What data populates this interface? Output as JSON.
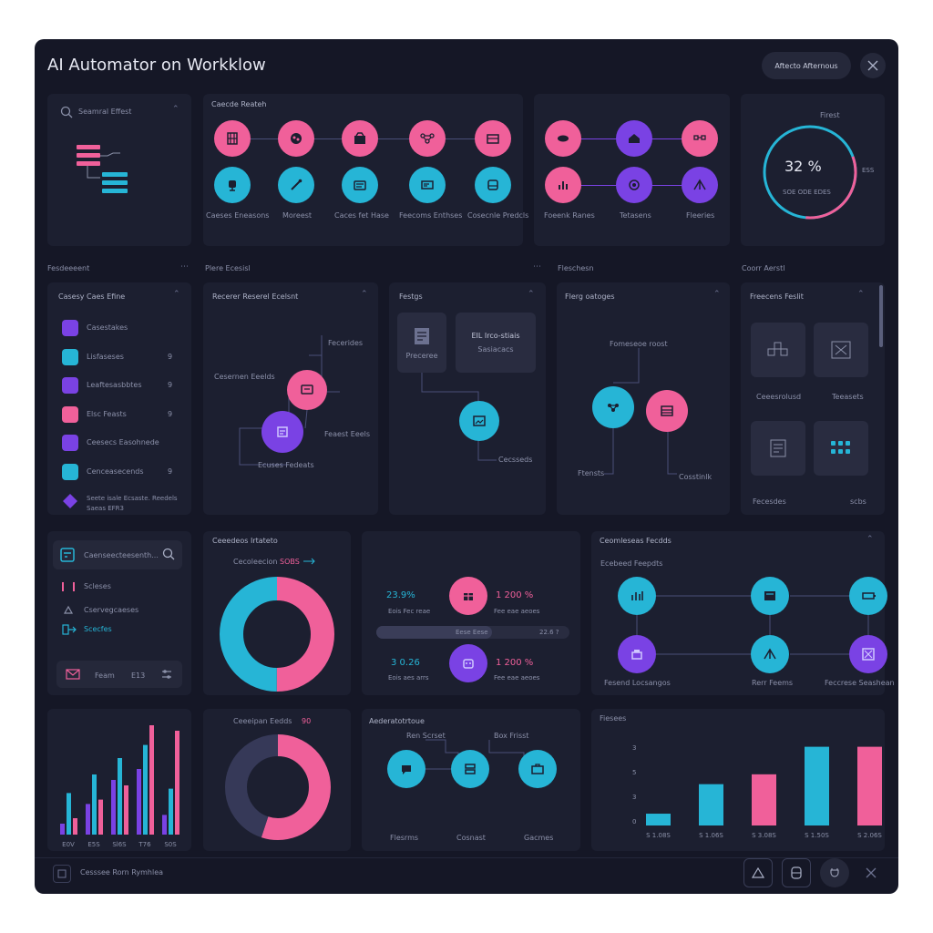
{
  "window": {
    "title": "AI Automator on Workklow",
    "action_button": "Aftecto Afternous"
  },
  "top": {
    "search_placeholder": "Seamral Effest",
    "flow1": {
      "title": "Caecde Reateh",
      "labels": [
        "Caeses Eneasons",
        "Moreest",
        "Caces fet Hase",
        "Feecoms Enthses",
        "Cosecnle Predcls"
      ]
    },
    "flow2": {
      "labels": [
        "Foeenk Ranes",
        "Tetasens",
        "Fleeries"
      ]
    },
    "gauge": {
      "title": "Firest",
      "value": "32 %",
      "side": "ESS",
      "caption": "SOE ODE EDES",
      "progress": 0.32
    }
  },
  "sections": [
    "Fesdeeeent",
    "Plere Ecesisl",
    "Fleschesn",
    "Coorr Aerstl"
  ],
  "mid": {
    "list": {
      "title": "Casesy Caes Efine",
      "items": [
        {
          "label": "Casestakes",
          "count": ""
        },
        {
          "label": "Lisfaseses",
          "count": "9"
        },
        {
          "label": "Leaftesasbbtes",
          "count": "9"
        },
        {
          "label": "Elsc Feasts",
          "count": "9"
        },
        {
          "label": "Ceesecs Easohnede",
          "count": ""
        },
        {
          "label": "Cenceasecends",
          "count": "9"
        }
      ],
      "note_line1": "Seete isale Ecsaste. Reedels",
      "note_line2": "Saeas EFR3"
    },
    "panel2": {
      "title": "Recerer Reserel Ecelsnt",
      "labels": {
        "a": "Fecerides",
        "b": "Cesernen Eeelds",
        "c": "Feaest Eeels",
        "d": "Ecuses Fedeats"
      }
    },
    "panel3": {
      "title": "Festgs",
      "box1": "Preceree",
      "box2_line1": "EIL Irco-stiais",
      "box2_line2": "Sasiacacs",
      "label": "Cecsseds"
    },
    "panel4": {
      "title": "Flerg oatoges",
      "labels": {
        "a": "Fomeseoe roost",
        "b": "Ftensts",
        "c": "Cosstinlk"
      }
    },
    "panel5": {
      "title": "Freecens Feslit",
      "tiles": [
        "Ceeesrolusd",
        "Teeasets"
      ],
      "bottom": [
        "Fecesdes",
        "scbs"
      ]
    }
  },
  "lower": {
    "side": {
      "search_placeholder": "Caenseecteesenth...",
      "items": [
        "Scleses",
        "Cservegcaeses",
        "Scecfes"
      ],
      "footer": [
        "Feam",
        "E13"
      ]
    },
    "donut1": {
      "title": "Ceeedeos Irtateto",
      "sub_label": "Cecoleecion",
      "sub_value": "SOBS",
      "chart_data": {
        "type": "pie",
        "values": [
          50,
          50
        ],
        "colors": [
          "#f0609a",
          "#26b5d6"
        ]
      }
    },
    "stats": {
      "rows": [
        {
          "value": "23.9%",
          "sub": "Eois Fec reae",
          "right": "1 200 %",
          "right_sub": "Fee eae aeoes"
        },
        {
          "value": "3 0.26",
          "sub": "Eois aes arrs",
          "right": "1 200 %",
          "right_sub": "Fee eae aeoes"
        }
      ],
      "bar_label": "Eese Eese",
      "bar_value": "22.6 ?",
      "progress": 0.6
    },
    "flow": {
      "title": "Ceomleseas Fecdds",
      "subtitle": "Ecebeed Feepdts",
      "labels": [
        "Fesend Locsangos",
        "Rerr Feems",
        "Feccrese Seashean"
      ]
    }
  },
  "bottom": {
    "bar1": {
      "chart_data": {
        "type": "bar",
        "categories": [
          "E0V",
          "E5S",
          "Sl6S",
          "T76",
          "S0S"
        ],
        "series": [
          {
            "name": "",
            "color": "#7a42e4",
            "values": [
              10,
              28,
              50,
              60,
              18
            ]
          },
          {
            "name": "",
            "color": "#26b5d6",
            "values": [
              38,
              55,
              70,
              82,
              42
            ]
          },
          {
            "name": "",
            "color": "#f0609a",
            "values": [
              15,
              32,
              45,
              100,
              95
            ]
          }
        ]
      }
    },
    "donut2": {
      "title": "Ceeeipan Eedds",
      "value": "90",
      "chart_data": {
        "type": "pie",
        "values": [
          55,
          45
        ],
        "colors": [
          "#f0609a",
          "#363958"
        ]
      }
    },
    "flow": {
      "title": "Aederatotrtoue",
      "labels_top": [
        "Ren Scrset",
        "Box Frisst"
      ],
      "labels": [
        "Flesrms",
        "Cosnast",
        "Gacmes"
      ]
    },
    "bar2": {
      "title": "Fiesees",
      "chart_data": {
        "type": "bar",
        "categories": [
          "S 1.08S",
          "S 1.06S",
          "S 3.08S",
          "S 1.50S",
          "S 2.06S"
        ],
        "values": [
          12,
          42,
          52,
          80,
          80
        ],
        "colors": [
          "#26b5d6",
          "#26b5d6",
          "#f0609a",
          "#26b5d6",
          "#f0609a"
        ],
        "yticks": [
          "3",
          "5",
          "3",
          "0"
        ],
        "ylim": [
          0,
          100
        ]
      }
    }
  },
  "status": {
    "label": "Cesssee Rorn Rymhlea"
  }
}
